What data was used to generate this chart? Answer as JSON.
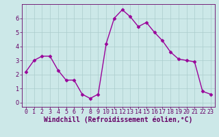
{
  "x": [
    0,
    1,
    2,
    3,
    4,
    5,
    6,
    7,
    8,
    9,
    10,
    11,
    12,
    13,
    14,
    15,
    16,
    17,
    18,
    19,
    20,
    21,
    22,
    23
  ],
  "y": [
    2.2,
    3.0,
    3.3,
    3.3,
    2.3,
    1.6,
    1.6,
    0.6,
    0.3,
    0.6,
    4.2,
    6.0,
    6.6,
    6.1,
    5.4,
    5.7,
    5.0,
    4.4,
    3.6,
    3.1,
    3.0,
    2.9,
    0.8,
    0.6
  ],
  "line_color": "#990099",
  "marker": "D",
  "marker_size": 2.5,
  "linewidth": 1.0,
  "bg_color": "#cce8e8",
  "grid_color": "#aacccc",
  "xlabel": "Windchill (Refroidissement éolien,°C)",
  "xlabel_fontsize": 7.0,
  "xlabel_color": "#660066",
  "ylim": [
    -0.3,
    7.0
  ],
  "xlim": [
    -0.5,
    23.5
  ],
  "yticks": [
    0,
    1,
    2,
    3,
    4,
    5,
    6
  ],
  "xtick_labels": [
    "0",
    "1",
    "2",
    "3",
    "4",
    "5",
    "6",
    "7",
    "8",
    "9",
    "10",
    "11",
    "12",
    "13",
    "14",
    "15",
    "16",
    "17",
    "18",
    "19",
    "20",
    "21",
    "22",
    "23"
  ],
  "tick_fontsize": 6.0,
  "tick_color": "#660066",
  "ylabel_fontsize": 6.5
}
